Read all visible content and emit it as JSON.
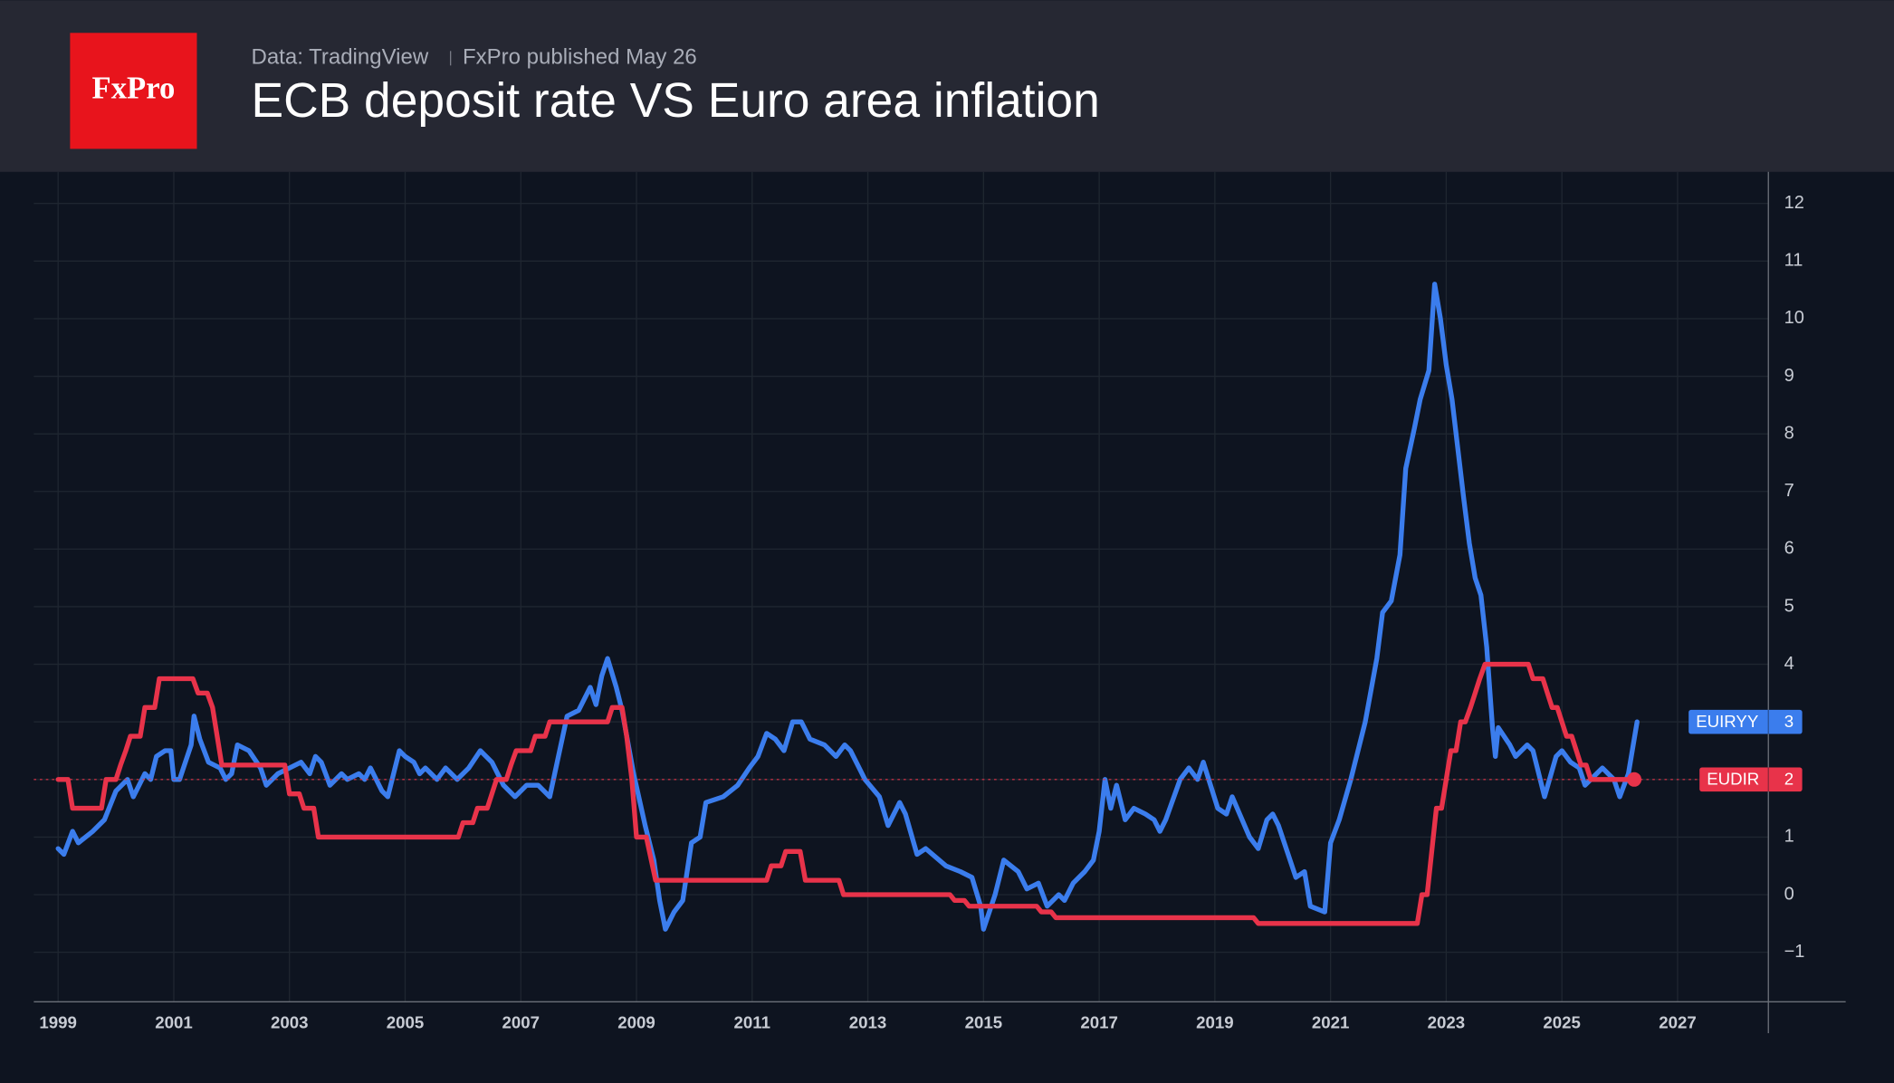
{
  "header": {
    "logo": "FxPro",
    "source": "Data: TradingView",
    "published": "FxPro published May 26"
  },
  "chart_data": {
    "type": "line",
    "title": "ECB deposit rate VS Euro area inflation",
    "xlim": [
      1998.58,
      2028.57
    ],
    "ylim": [
      -1.86,
      12.55
    ],
    "xticks": [
      1999,
      2001,
      2003,
      2005,
      2007,
      2009,
      2011,
      2013,
      2015,
      2017,
      2019,
      2021,
      2023,
      2025,
      2027
    ],
    "yticks": [
      {
        "value": -1,
        "label": "−1"
      },
      0,
      1,
      2,
      3,
      4,
      5,
      6,
      7,
      8,
      9,
      10,
      11,
      12
    ],
    "grid": true,
    "series": [
      {
        "name": "EUIRYY",
        "color": "#3b7ded",
        "x": [
          1999.0,
          1999.1,
          1999.25,
          1999.35,
          1999.6,
          1999.8,
          2000.0,
          2000.2,
          2000.3,
          2000.5,
          2000.6,
          2000.7,
          2000.85,
          2000.95,
          2001.0,
          2001.1,
          2001.3,
          2001.35,
          2001.45,
          2001.6,
          2001.8,
          2001.9,
          2002.0,
          2002.1,
          2002.3,
          2002.5,
          2002.6,
          2002.8,
          2003.0,
          2003.2,
          2003.35,
          2003.45,
          2003.55,
          2003.7,
          2003.9,
          2004.0,
          2004.2,
          2004.3,
          2004.4,
          2004.6,
          2004.7,
          2004.9,
          2005.0,
          2005.15,
          2005.25,
          2005.35,
          2005.45,
          2005.55,
          2005.7,
          2005.9,
          2006.1,
          2006.3,
          2006.5,
          2006.7,
          2006.9,
          2007.1,
          2007.3,
          2007.5,
          2007.65,
          2007.8,
          2008.0,
          2008.2,
          2008.3,
          2008.4,
          2008.5,
          2008.65,
          2008.75,
          2008.95,
          2009.15,
          2009.3,
          2009.4,
          2009.5,
          2009.65,
          2009.8,
          2009.95,
          2010.1,
          2010.2,
          2010.5,
          2010.75,
          2010.95,
          2011.1,
          2011.25,
          2011.4,
          2011.55,
          2011.7,
          2011.85,
          2012.0,
          2012.25,
          2012.45,
          2012.6,
          2012.7,
          2012.85,
          2012.95,
          2013.2,
          2013.35,
          2013.55,
          2013.65,
          2013.85,
          2014.0,
          2014.35,
          2014.6,
          2014.8,
          2014.95,
          2015.0,
          2015.2,
          2015.35,
          2015.6,
          2015.75,
          2015.95,
          2016.1,
          2016.3,
          2016.4,
          2016.55,
          2016.75,
          2016.9,
          2017.0,
          2017.1,
          2017.2,
          2017.3,
          2017.45,
          2017.6,
          2017.8,
          2017.95,
          2018.05,
          2018.15,
          2018.4,
          2018.55,
          2018.7,
          2018.8,
          2019.05,
          2019.2,
          2019.3,
          2019.6,
          2019.75,
          2019.9,
          2020.0,
          2020.1,
          2020.4,
          2020.55,
          2020.65,
          2020.9,
          2021.0,
          2021.15,
          2021.35,
          2021.6,
          2021.8,
          2021.9,
          2022.05,
          2022.2,
          2022.3,
          2022.45,
          2022.55,
          2022.7,
          2022.8,
          2022.9,
          2023.0,
          2023.1,
          2023.3,
          2023.4,
          2023.5,
          2023.6,
          2023.7,
          2023.8,
          2023.85,
          2023.9,
          2024.1,
          2024.2,
          2024.4,
          2024.5,
          2024.7,
          2024.9,
          2025.0,
          2025.15,
          2025.3,
          2025.4,
          2025.6,
          2025.7,
          2025.9,
          2026.0,
          2026.15,
          2026.3
        ],
        "values": [
          0.8,
          0.7,
          1.1,
          0.9,
          1.1,
          1.3,
          1.8,
          2.0,
          1.7,
          2.1,
          2.0,
          2.4,
          2.5,
          2.5,
          2.0,
          2.0,
          2.6,
          3.1,
          2.7,
          2.3,
          2.2,
          2.0,
          2.1,
          2.6,
          2.5,
          2.2,
          1.9,
          2.1,
          2.2,
          2.3,
          2.1,
          2.4,
          2.3,
          1.9,
          2.1,
          2.0,
          2.1,
          2.0,
          2.2,
          1.8,
          1.7,
          2.5,
          2.4,
          2.3,
          2.1,
          2.2,
          2.1,
          2.0,
          2.2,
          2.0,
          2.2,
          2.5,
          2.3,
          1.9,
          1.7,
          1.9,
          1.9,
          1.7,
          2.4,
          3.1,
          3.2,
          3.6,
          3.3,
          3.8,
          4.1,
          3.6,
          3.2,
          2.1,
          1.2,
          0.6,
          -0.1,
          -0.6,
          -0.3,
          -0.1,
          0.9,
          1.0,
          1.6,
          1.7,
          1.9,
          2.2,
          2.4,
          2.8,
          2.7,
          2.5,
          3.0,
          3.0,
          2.7,
          2.6,
          2.4,
          2.6,
          2.5,
          2.2,
          2.0,
          1.7,
          1.2,
          1.6,
          1.4,
          0.7,
          0.8,
          0.5,
          0.4,
          0.3,
          -0.2,
          -0.6,
          0.0,
          0.6,
          0.4,
          0.1,
          0.2,
          -0.2,
          0.0,
          -0.1,
          0.2,
          0.4,
          0.6,
          1.1,
          2.0,
          1.5,
          1.9,
          1.3,
          1.5,
          1.4,
          1.3,
          1.1,
          1.3,
          2.0,
          2.2,
          2.0,
          2.3,
          1.5,
          1.4,
          1.7,
          1.0,
          0.8,
          1.3,
          1.4,
          1.2,
          0.3,
          0.4,
          -0.2,
          -0.3,
          0.9,
          1.3,
          2.0,
          3.0,
          4.1,
          4.9,
          5.1,
          5.9,
          7.4,
          8.1,
          8.6,
          9.1,
          10.6,
          10.0,
          9.2,
          8.6,
          6.9,
          6.1,
          5.5,
          5.2,
          4.3,
          2.9,
          2.4,
          2.9,
          2.6,
          2.4,
          2.6,
          2.5,
          1.7,
          2.4,
          2.5,
          2.3,
          2.2,
          1.9,
          2.1,
          2.2,
          2.0,
          1.7,
          2.1,
          3.0
        ]
      },
      {
        "name": "EUDIR",
        "color": "#e8334a",
        "x": [
          1999.0,
          1999.17,
          1999.25,
          1999.75,
          1999.83,
          2000.0,
          2000.08,
          2000.17,
          2000.25,
          2000.42,
          2000.5,
          2000.67,
          2000.75,
          2001.33,
          2001.42,
          2001.58,
          2001.67,
          2001.75,
          2001.83,
          2002.92,
          2003.0,
          2003.17,
          2003.25,
          2003.42,
          2003.5,
          2005.92,
          2006.0,
          2006.17,
          2006.25,
          2006.42,
          2006.5,
          2006.58,
          2006.75,
          2006.83,
          2006.92,
          2007.17,
          2007.25,
          2007.42,
          2007.5,
          2008.5,
          2008.58,
          2008.75,
          2008.83,
          2008.92,
          2009.0,
          2009.17,
          2009.33,
          2011.25,
          2011.33,
          2011.5,
          2011.58,
          2011.83,
          2011.92,
          2012.5,
          2012.58,
          2014.42,
          2014.5,
          2014.67,
          2014.75,
          2015.92,
          2016.0,
          2016.17,
          2016.25,
          2019.67,
          2019.75,
          2022.5,
          2022.58,
          2022.67,
          2022.75,
          2022.83,
          2022.92,
          2023.0,
          2023.08,
          2023.17,
          2023.25,
          2023.33,
          2023.42,
          2023.5,
          2023.58,
          2023.67,
          2024.42,
          2024.5,
          2024.67,
          2024.75,
          2024.83,
          2024.92,
          2025.0,
          2025.08,
          2025.17,
          2025.25,
          2025.33,
          2025.42,
          2025.5,
          2026.25
        ],
        "values": [
          2,
          2,
          1.5,
          1.5,
          2,
          2,
          2.25,
          2.5,
          2.75,
          2.75,
          3.25,
          3.25,
          3.75,
          3.75,
          3.5,
          3.5,
          3.25,
          2.75,
          2.25,
          2.25,
          1.75,
          1.75,
          1.5,
          1.5,
          1.0,
          1.0,
          1.25,
          1.25,
          1.5,
          1.5,
          1.75,
          2.0,
          2.0,
          2.25,
          2.5,
          2.5,
          2.75,
          2.75,
          3.0,
          3.0,
          3.25,
          3.25,
          2.75,
          2.0,
          1.0,
          1.0,
          0.25,
          0.25,
          0.5,
          0.5,
          0.75,
          0.75,
          0.25,
          0.25,
          0,
          0,
          -0.1,
          -0.1,
          -0.2,
          -0.2,
          -0.3,
          -0.3,
          -0.4,
          -0.4,
          -0.5,
          -0.5,
          0,
          0,
          0.75,
          1.5,
          1.5,
          2.0,
          2.5,
          2.5,
          3.0,
          3.0,
          3.25,
          3.5,
          3.75,
          4.0,
          4.0,
          3.75,
          3.75,
          3.5,
          3.25,
          3.25,
          3.0,
          2.75,
          2.75,
          2.5,
          2.25,
          2.25,
          2.0,
          2.0
        ]
      }
    ]
  }
}
